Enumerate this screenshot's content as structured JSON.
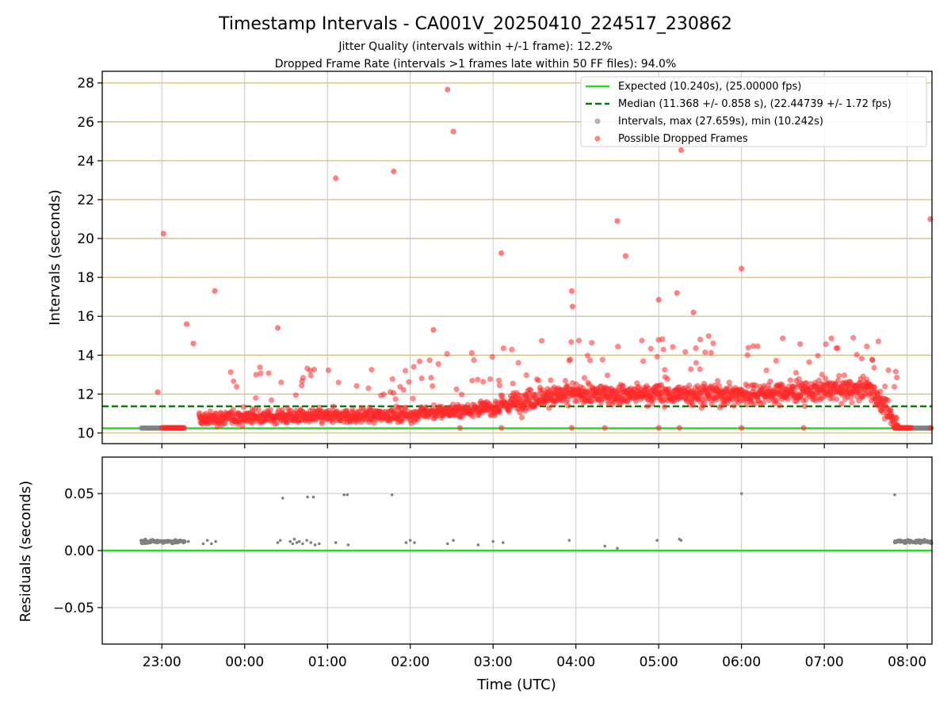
{
  "chart_data": [
    {
      "type": "scatter",
      "title": "Timestamp Intervals - CA001V_20250410_224517_230862",
      "subtitle_lines": [
        "Jitter Quality (intervals within +/-1 frame): 12.2%",
        "Dropped Frame Rate (intervals >1 frames late within 50 FF files): 94.0%"
      ],
      "xlabel": "",
      "ylabel": "Intervals (seconds)",
      "xlim_hours": [
        -1.72,
        8.3
      ],
      "ylim": [
        9.45,
        28.6
      ],
      "yticks": [
        10,
        12,
        14,
        16,
        18,
        20,
        22,
        24,
        26,
        28
      ],
      "grid": true,
      "legend_position": "top-right",
      "colors": {
        "expected": "#1fe01f",
        "median": "#067d06",
        "intervals": "#808080",
        "dropped": "#ff2a2a",
        "hgrid": "#d4c080",
        "vgrid": "#c8c8c8"
      },
      "series": [
        {
          "name": "Expected (10.240s), (25.00000 fps)",
          "kind": "hline",
          "y": 10.24
        },
        {
          "name": "Median (11.368 +/- 0.858 s), (22.44739 +/- 1.72 fps)",
          "kind": "hline",
          "y": 11.368
        },
        {
          "name": "Intervals, max (27.659s), min (10.242s)",
          "kind": "scatter"
        },
        {
          "name": "Possible Dropped Frames",
          "kind": "scatter"
        }
      ],
      "intervals_baseline": [
        {
          "from_hour": -1.25,
          "to_hour": -0.75,
          "y": 10.25
        },
        {
          "from_hour": 7.85,
          "to_hour": 8.3,
          "y": 10.25
        }
      ],
      "dense_band_trend": [
        {
          "x": -0.55,
          "y": 10.7
        },
        {
          "x": 0.0,
          "y": 10.85
        },
        {
          "x": 1.0,
          "y": 10.85
        },
        {
          "x": 2.0,
          "y": 10.95
        },
        {
          "x": 3.0,
          "y": 11.3
        },
        {
          "x": 3.5,
          "y": 11.8
        },
        {
          "x": 4.0,
          "y": 12.0
        },
        {
          "x": 5.0,
          "y": 12.0
        },
        {
          "x": 6.0,
          "y": 12.0
        },
        {
          "x": 7.0,
          "y": 12.2
        },
        {
          "x": 7.55,
          "y": 12.3
        },
        {
          "x": 7.9,
          "y": 10.3
        }
      ],
      "dropped_outliers": [
        {
          "x": -0.98,
          "y": 20.25
        },
        {
          "x": -0.7,
          "y": 15.6
        },
        {
          "x": -0.62,
          "y": 14.6
        },
        {
          "x": -0.36,
          "y": 17.3
        },
        {
          "x": 0.4,
          "y": 15.4
        },
        {
          "x": 1.1,
          "y": 23.1
        },
        {
          "x": 1.8,
          "y": 23.45
        },
        {
          "x": 2.28,
          "y": 15.3
        },
        {
          "x": 2.45,
          "y": 27.66
        },
        {
          "x": 2.52,
          "y": 25.5
        },
        {
          "x": 3.1,
          "y": 19.25
        },
        {
          "x": 3.95,
          "y": 17.3
        },
        {
          "x": 3.96,
          "y": 16.5
        },
        {
          "x": 4.5,
          "y": 20.9
        },
        {
          "x": 4.6,
          "y": 19.1
        },
        {
          "x": 5.27,
          "y": 24.55
        },
        {
          "x": 5.0,
          "y": 16.85
        },
        {
          "x": 5.22,
          "y": 17.2
        },
        {
          "x": 5.42,
          "y": 16.2
        },
        {
          "x": 6.0,
          "y": 18.45
        },
        {
          "x": 8.28,
          "y": 21.0
        },
        {
          "x": -1.05,
          "y": 12.1
        }
      ],
      "dropped_lows": [
        {
          "x": -1.0,
          "y": 10.26
        },
        {
          "x": -0.9,
          "y": 10.26
        },
        {
          "x": -0.8,
          "y": 10.26
        },
        {
          "x": 2.6,
          "y": 10.26
        },
        {
          "x": 3.1,
          "y": 10.26
        },
        {
          "x": 3.95,
          "y": 10.26
        },
        {
          "x": 4.35,
          "y": 10.26
        },
        {
          "x": 5.0,
          "y": 10.26
        },
        {
          "x": 5.25,
          "y": 10.26
        },
        {
          "x": 6.0,
          "y": 10.26
        },
        {
          "x": 6.75,
          "y": 10.26
        },
        {
          "x": 7.9,
          "y": 10.26
        },
        {
          "x": 8.0,
          "y": 10.26
        },
        {
          "x": 8.28,
          "y": 10.26
        }
      ]
    },
    {
      "type": "scatter",
      "title": "",
      "xlabel": "Time (UTC)",
      "ylabel": "Residuals (seconds)",
      "xlim_hours": [
        -1.72,
        8.3
      ],
      "ylim": [
        -0.082,
        0.082
      ],
      "yticks": [
        0.05,
        0.0,
        -0.05
      ],
      "ytick_labels": [
        "0.05",
        "0.00",
        "−0.05"
      ],
      "xticks": [
        {
          "hour": -1.0,
          "label": "23:00"
        },
        {
          "hour": 0.0,
          "label": "00:00"
        },
        {
          "hour": 1.0,
          "label": "01:00"
        },
        {
          "hour": 2.0,
          "label": "02:00"
        },
        {
          "hour": 3.0,
          "label": "03:00"
        },
        {
          "hour": 4.0,
          "label": "04:00"
        },
        {
          "hour": 5.0,
          "label": "05:00"
        },
        {
          "hour": 6.0,
          "label": "06:00"
        },
        {
          "hour": 7.0,
          "label": "07:00"
        },
        {
          "hour": 8.0,
          "label": "08:00"
        }
      ],
      "zero_line": 0.0,
      "residual_clusters": [
        {
          "from_hour": -1.25,
          "to_hour": -0.72,
          "y": 0.008
        },
        {
          "from_hour": 7.85,
          "to_hour": 8.3,
          "y": 0.008
        }
      ],
      "residual_points": [
        {
          "x": -0.68,
          "y": 0.008
        },
        {
          "x": -0.5,
          "y": 0.006
        },
        {
          "x": -0.45,
          "y": 0.009
        },
        {
          "x": -0.4,
          "y": 0.006
        },
        {
          "x": -0.35,
          "y": 0.008
        },
        {
          "x": 0.4,
          "y": 0.007
        },
        {
          "x": 0.43,
          "y": 0.009
        },
        {
          "x": 0.46,
          "y": 0.046
        },
        {
          "x": 0.55,
          "y": 0.008
        },
        {
          "x": 0.58,
          "y": 0.006
        },
        {
          "x": 0.6,
          "y": 0.01
        },
        {
          "x": 0.63,
          "y": 0.007
        },
        {
          "x": 0.66,
          "y": 0.008
        },
        {
          "x": 0.7,
          "y": 0.006
        },
        {
          "x": 0.75,
          "y": 0.009
        },
        {
          "x": 0.76,
          "y": 0.047
        },
        {
          "x": 0.8,
          "y": 0.007
        },
        {
          "x": 0.83,
          "y": 0.047
        },
        {
          "x": 0.85,
          "y": 0.005
        },
        {
          "x": 0.9,
          "y": 0.006
        },
        {
          "x": 1.1,
          "y": 0.007
        },
        {
          "x": 1.2,
          "y": 0.049
        },
        {
          "x": 1.24,
          "y": 0.049
        },
        {
          "x": 1.25,
          "y": 0.005
        },
        {
          "x": 1.78,
          "y": 0.049
        },
        {
          "x": 1.95,
          "y": 0.007
        },
        {
          "x": 2.0,
          "y": 0.009
        },
        {
          "x": 2.05,
          "y": 0.007
        },
        {
          "x": 2.45,
          "y": 0.006
        },
        {
          "x": 2.52,
          "y": 0.009
        },
        {
          "x": 2.82,
          "y": 0.005
        },
        {
          "x": 3.0,
          "y": 0.008
        },
        {
          "x": 3.12,
          "y": 0.007
        },
        {
          "x": 3.92,
          "y": 0.009
        },
        {
          "x": 4.35,
          "y": 0.004
        },
        {
          "x": 4.5,
          "y": 0.002
        },
        {
          "x": 4.98,
          "y": 0.009
        },
        {
          "x": 5.25,
          "y": 0.01
        },
        {
          "x": 5.27,
          "y": 0.009
        },
        {
          "x": 6.0,
          "y": 0.05
        },
        {
          "x": 7.85,
          "y": 0.049
        }
      ]
    }
  ]
}
